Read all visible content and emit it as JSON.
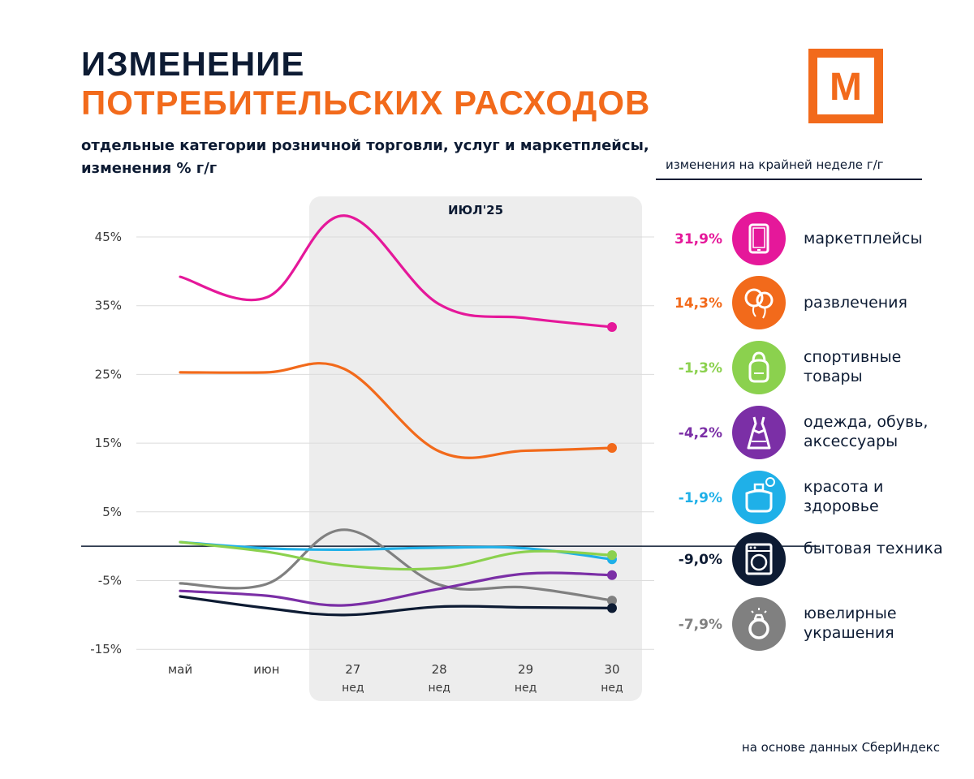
{
  "header": {
    "title_line1": "ИЗМЕНЕНИЕ",
    "title_line2": "ПОТРЕБИТЕЛЬСКИХ РАСХОДОВ",
    "subtitle_line1": "отдельные категории розничной торговли, услуг  и маркетплейсы,",
    "subtitle_line2": "изменения % г/г",
    "logo_letter": "М"
  },
  "legend": {
    "heading": "изменения на крайней неделе г/г"
  },
  "footnote": "на основе данных СберИндекс",
  "colors": {
    "brand_orange": "#f26a1b",
    "navy": "#0d1b33",
    "highlight_bg": "#ededed",
    "grid": "#dcdcdc"
  },
  "chart_data": {
    "type": "line",
    "title": "ИЗМЕНЕНИЕ ПОТРЕБИТЕЛЬСКИХ РАСХОДОВ",
    "highlight_label": "ИЮЛ'25",
    "x_ticks": [
      {
        "top": "май",
        "bottom": ""
      },
      {
        "top": "июн",
        "bottom": ""
      },
      {
        "top": "27",
        "bottom": "нед"
      },
      {
        "top": "28",
        "bottom": "нед"
      },
      {
        "top": "29",
        "bottom": "нед"
      },
      {
        "top": "30",
        "bottom": "нед"
      }
    ],
    "y_ticks": [
      {
        "value": 45,
        "label": "45%"
      },
      {
        "value": 35,
        "label": "35%"
      },
      {
        "value": 25,
        "label": "25%"
      },
      {
        "value": 15,
        "label": "15%"
      },
      {
        "value": 5,
        "label": "5%"
      },
      {
        "value": -5,
        "label": "-5%"
      },
      {
        "value": -15,
        "label": "-15%"
      }
    ],
    "ylim": [
      -15,
      45
    ],
    "zero_line": 0,
    "x": [
      0,
      1,
      1.9,
      3,
      4,
      5
    ],
    "series": [
      {
        "name": "маркетплейсы",
        "label": "маркетплейсы",
        "value_label": "31,9%",
        "color": "#e5189a",
        "icon": "tablet-icon",
        "values": [
          39.2,
          36.2,
          48.1,
          35.2,
          33.2,
          31.9
        ]
      },
      {
        "name": "развлечения",
        "label": "развлечения",
        "value_label": "14,3%",
        "color": "#f26a1b",
        "icon": "balloons-icon",
        "values": [
          25.3,
          25.3,
          25.8,
          13.8,
          13.9,
          14.3
        ]
      },
      {
        "name": "спортивные товары",
        "label": "спортивные товары",
        "value_label": "-1,3%",
        "color": "#8bd14e",
        "icon": "kettlebell-icon",
        "values": [
          0.6,
          -0.8,
          -2.8,
          -3.2,
          -0.8,
          -1.3
        ]
      },
      {
        "name": "одежда, обувь, аксессуары",
        "label": "одежда, обувь, аксессуары",
        "value_label": "-4,2%",
        "color": "#7b2fa6",
        "icon": "dress-icon",
        "values": [
          -6.5,
          -7.2,
          -8.6,
          -6.2,
          -4.0,
          -4.2
        ]
      },
      {
        "name": "красота и здоровье",
        "label": "красота и здоровье",
        "value_label": "-1,9%",
        "color": "#1fb0e8",
        "icon": "perfume-icon",
        "values": [
          0.6,
          -0.3,
          -0.5,
          -0.2,
          -0.3,
          -1.9
        ]
      },
      {
        "name": "бытовая техника",
        "label": "бытовая техника",
        "value_label": "-9,0%",
        "color": "#0d1b33",
        "icon": "washing-machine-icon",
        "values": [
          -7.3,
          -9.0,
          -10.0,
          -8.8,
          -8.9,
          -9.0
        ]
      },
      {
        "name": "ювелирные украшения",
        "label": "ювелирные украшения",
        "value_label": "-7,9%",
        "color": "#808080",
        "icon": "ring-icon",
        "values": [
          -5.4,
          -5.5,
          2.4,
          -5.6,
          -6.0,
          -7.9
        ]
      }
    ]
  }
}
